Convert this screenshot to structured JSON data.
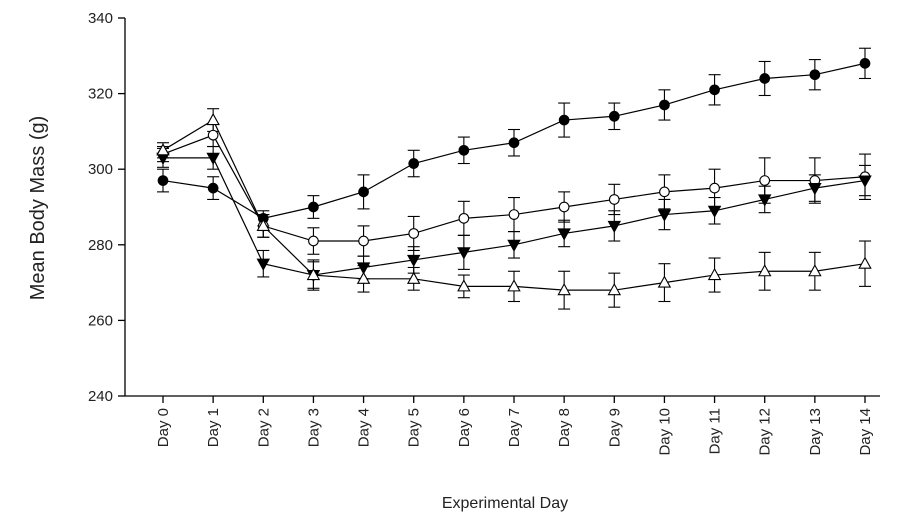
{
  "chart_data": {
    "type": "line",
    "title": "",
    "xlabel": "Experimental Day",
    "ylabel": "Mean Body Mass (g)",
    "categories": [
      "Day 0",
      "Day 1",
      "Day 2",
      "Day 3",
      "Day 4",
      "Day 5",
      "Day 6",
      "Day 7",
      "Day 8",
      "Day 9",
      "Day 10",
      "Day 11",
      "Day 12",
      "Day 13",
      "Day 14"
    ],
    "ylim": [
      240,
      340
    ],
    "yticks": [
      240,
      260,
      280,
      300,
      320,
      340
    ],
    "grid": false,
    "legend": "none",
    "series": [
      {
        "marker": "filled-circle",
        "values": [
          297,
          295,
          287,
          290,
          294,
          301.5,
          305,
          307,
          313,
          314,
          317,
          321,
          324,
          325,
          328
        ],
        "errors": [
          3,
          3,
          2,
          3,
          4.5,
          3.5,
          3.5,
          3.5,
          4.5,
          3.5,
          4,
          4,
          4.5,
          4,
          4
        ]
      },
      {
        "marker": "open-circle",
        "values": [
          304,
          309,
          285,
          281,
          281,
          283,
          287,
          288,
          290,
          292,
          294,
          295,
          297,
          297,
          298
        ],
        "errors": [
          2,
          3,
          3,
          3.5,
          4,
          4.5,
          4.5,
          4.5,
          4,
          4,
          4.5,
          5,
          6,
          6,
          6
        ]
      },
      {
        "marker": "filled-triangle-down",
        "values": [
          303,
          303,
          275,
          272,
          274,
          276,
          278,
          280,
          283,
          285,
          288,
          289,
          292,
          295,
          297
        ],
        "errors": [
          2.5,
          3,
          3.5,
          3.5,
          3,
          3.5,
          4.5,
          3.5,
          3.5,
          4,
          4,
          3.5,
          3.5,
          3.5,
          4
        ]
      },
      {
        "marker": "open-triangle-up",
        "values": [
          305,
          313,
          285,
          272,
          271,
          271,
          269,
          269,
          268,
          268,
          270,
          272,
          273,
          273,
          275
        ],
        "errors": [
          2,
          3,
          3,
          4,
          3.5,
          3,
          3,
          4,
          5,
          4.5,
          5,
          4.5,
          5,
          5,
          6
        ]
      }
    ]
  }
}
